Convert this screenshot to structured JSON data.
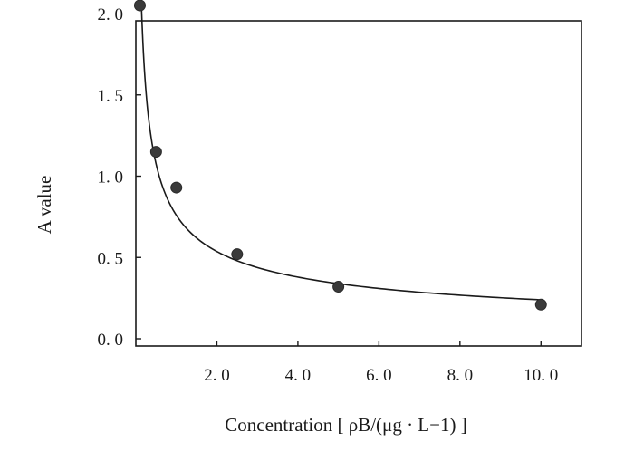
{
  "chart_data": {
    "type": "scatter",
    "title": "",
    "xlabel": "Concentration [ ρB/(μg · L−1) ]",
    "ylabel": "A value",
    "xlim": [
      0.0,
      11.0
    ],
    "ylim": [
      0.0,
      2.0
    ],
    "x_ticks": [
      2.0,
      4.0,
      6.0,
      8.0,
      10.0
    ],
    "x_tick_labels": [
      "2. 0",
      "4. 0",
      "6. 0",
      "8. 0",
      "10. 0"
    ],
    "y_ticks": [
      0.0,
      0.5,
      1.0,
      1.5,
      2.0
    ],
    "y_tick_labels": [
      "0. 0",
      "0. 5",
      "1. 0",
      "1. 5",
      "2. 0"
    ],
    "grid": false,
    "legend": "none",
    "series": [
      {
        "x": [
          0.1,
          0.5,
          1.0,
          2.5,
          5.0,
          10.0
        ],
        "y": [
          2.05,
          1.15,
          0.93,
          0.52,
          0.32,
          0.21
        ],
        "fit_line": "smooth decreasing curve through points"
      }
    ],
    "colors": {
      "marker": "#3a3a3a",
      "line": "#1a1a1a"
    }
  }
}
